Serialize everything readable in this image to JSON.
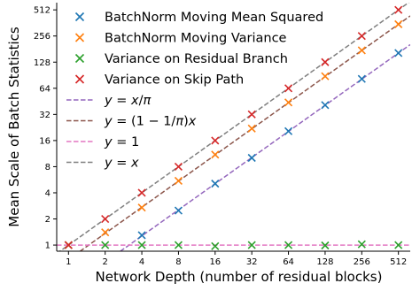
{
  "chart_data": {
    "type": "scatter",
    "title": "",
    "xlabel": "Network Depth (number of residual blocks)",
    "ylabel": "Mean Scale of Batch Statistics",
    "x_scale": "log2",
    "y_scale": "log2",
    "xlim": [
      0.8,
      640
    ],
    "ylim": [
      0.85,
      620
    ],
    "x_ticks": [
      1,
      2,
      4,
      8,
      16,
      32,
      64,
      128,
      256,
      512
    ],
    "x_tick_labels": [
      "1",
      "2",
      "4",
      "8",
      "16",
      "32",
      "64",
      "128",
      "256",
      "512"
    ],
    "y_ticks": [
      1,
      2,
      4,
      8,
      16,
      32,
      64,
      128,
      256,
      512
    ],
    "y_tick_labels": [
      "1",
      "2",
      "4",
      "8",
      "16",
      "32",
      "64",
      "128",
      "256",
      "512"
    ],
    "grid": false,
    "legend_position": "top-left",
    "series": [
      {
        "name": "BatchNorm Moving Mean Squared",
        "color": "#1f77b4",
        "marker": "x",
        "x": [
          4,
          8,
          16,
          32,
          64,
          128,
          256,
          512
        ],
        "y": [
          1.3,
          2.5,
          5.1,
          10.1,
          20.5,
          41,
          82,
          163
        ]
      },
      {
        "name": "BatchNorm Moving Variance",
        "color": "#ff7f0e",
        "marker": "x",
        "x": [
          1,
          2,
          4,
          8,
          16,
          32,
          64,
          128,
          256,
          512
        ],
        "y": [
          1.0,
          1.4,
          2.7,
          5.5,
          11,
          22,
          44,
          88,
          175,
          350
        ]
      },
      {
        "name": "Variance on Residual Branch",
        "color": "#2ca02c",
        "marker": "x",
        "x": [
          1,
          2,
          4,
          8,
          16,
          32,
          64,
          128,
          256,
          512
        ],
        "y": [
          1.0,
          1.0,
          1.0,
          1.0,
          0.97,
          1.0,
          1.0,
          0.99,
          1.02,
          1.0
        ]
      },
      {
        "name": "Variance on Skip Path",
        "color": "#d62728",
        "marker": "x",
        "x": [
          1,
          2,
          4,
          8,
          16,
          32,
          64,
          128,
          256,
          512
        ],
        "y": [
          1.0,
          2.0,
          4.0,
          8.0,
          16,
          32,
          64,
          128,
          256,
          512
        ]
      }
    ],
    "reference_lines": [
      {
        "name": "y = x/π",
        "label_parts": [
          "y",
          " = ",
          "x",
          "/",
          "π"
        ],
        "color": "#9467bd",
        "dash": "dashed",
        "slope": 0.3183
      },
      {
        "name": "y = (1 − 1/π)x",
        "label_parts": [
          "y",
          " = (1 − 1/",
          "π",
          ")",
          "x"
        ],
        "color": "#8c564b",
        "dash": "dashed",
        "slope": 0.6817
      },
      {
        "name": "y = 1",
        "label_parts": [
          "y",
          " = 1"
        ],
        "color": "#e377c2",
        "dash": "dashed",
        "constant": 1
      },
      {
        "name": "y = x",
        "label_parts": [
          "y",
          " = ",
          "x"
        ],
        "color": "#7f7f7f",
        "dash": "dashed",
        "slope": 1
      }
    ]
  }
}
